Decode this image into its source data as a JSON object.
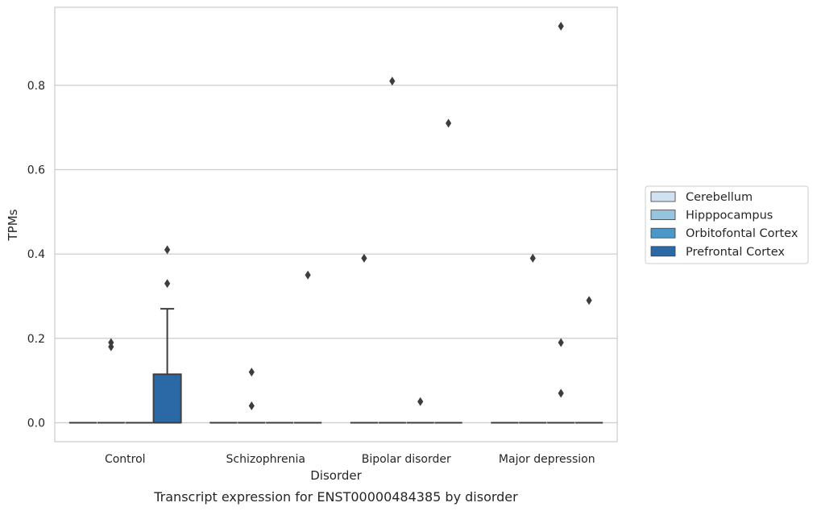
{
  "chart_data": {
    "type": "box",
    "title": "",
    "caption": "Transcript expression for ENST00000484385 by disorder",
    "xlabel": "Disorder",
    "ylabel": "TPMs",
    "ylim": [
      -0.045,
      0.985
    ],
    "yticks": [
      0.0,
      0.2,
      0.4,
      0.6,
      0.8
    ],
    "ytick_labels": [
      "0.0",
      "0.2",
      "0.4",
      "0.6",
      "0.8"
    ],
    "grid": "horizontal",
    "legend_position": "right",
    "categories": [
      "Control",
      "Schizophrenia",
      "Bipolar disorder",
      "Major depression"
    ],
    "series": [
      {
        "name": "Cerebellum",
        "color": "#d0e1f2",
        "boxes": [
          {
            "min": 0.0,
            "q1": 0.0,
            "median": 0.0,
            "q3": 0.0,
            "max": 0.0,
            "outliers": []
          },
          {
            "min": 0.0,
            "q1": 0.0,
            "median": 0.0,
            "q3": 0.0,
            "max": 0.0,
            "outliers": []
          },
          {
            "min": 0.0,
            "q1": 0.0,
            "median": 0.0,
            "q3": 0.0,
            "max": 0.0,
            "outliers": [
              0.39
            ]
          },
          {
            "min": 0.0,
            "q1": 0.0,
            "median": 0.0,
            "q3": 0.0,
            "max": 0.0,
            "outliers": []
          }
        ]
      },
      {
        "name": "Hipppocampus",
        "color": "#94c4df",
        "boxes": [
          {
            "min": 0.0,
            "q1": 0.0,
            "median": 0.0,
            "q3": 0.0,
            "max": 0.0,
            "outliers": [
              0.18,
              0.19
            ]
          },
          {
            "min": 0.0,
            "q1": 0.0,
            "median": 0.0,
            "q3": 0.0,
            "max": 0.0,
            "outliers": [
              0.04,
              0.12
            ]
          },
          {
            "min": 0.0,
            "q1": 0.0,
            "median": 0.0,
            "q3": 0.0,
            "max": 0.0,
            "outliers": [
              0.81
            ]
          },
          {
            "min": 0.0,
            "q1": 0.0,
            "median": 0.0,
            "q3": 0.0,
            "max": 0.0,
            "outliers": [
              0.39
            ]
          }
        ]
      },
      {
        "name": "Orbitofontal Cortex",
        "color": "#4a98c9",
        "boxes": [
          {
            "min": 0.0,
            "q1": 0.0,
            "median": 0.0,
            "q3": 0.0,
            "max": 0.0,
            "outliers": []
          },
          {
            "min": 0.0,
            "q1": 0.0,
            "median": 0.0,
            "q3": 0.0,
            "max": 0.0,
            "outliers": []
          },
          {
            "min": 0.0,
            "q1": 0.0,
            "median": 0.0,
            "q3": 0.0,
            "max": 0.0,
            "outliers": [
              0.05
            ]
          },
          {
            "min": 0.0,
            "q1": 0.0,
            "median": 0.0,
            "q3": 0.0,
            "max": 0.0,
            "outliers": [
              0.94,
              0.19,
              0.07
            ]
          }
        ]
      },
      {
        "name": "Prefrontal Cortex",
        "color": "#2a68a6",
        "boxes": [
          {
            "min": 0.0,
            "q1": 0.0,
            "median": 0.0,
            "q3": 0.115,
            "max": 0.27,
            "outliers": [
              0.33,
              0.41
            ]
          },
          {
            "min": 0.0,
            "q1": 0.0,
            "median": 0.0,
            "q3": 0.0,
            "max": 0.0,
            "outliers": [
              0.35
            ]
          },
          {
            "min": 0.0,
            "q1": 0.0,
            "median": 0.0,
            "q3": 0.0,
            "max": 0.0,
            "outliers": [
              0.71
            ]
          },
          {
            "min": 0.0,
            "q1": 0.0,
            "median": 0.0,
            "q3": 0.0,
            "max": 0.0,
            "outliers": [
              0.29
            ]
          }
        ]
      }
    ]
  }
}
